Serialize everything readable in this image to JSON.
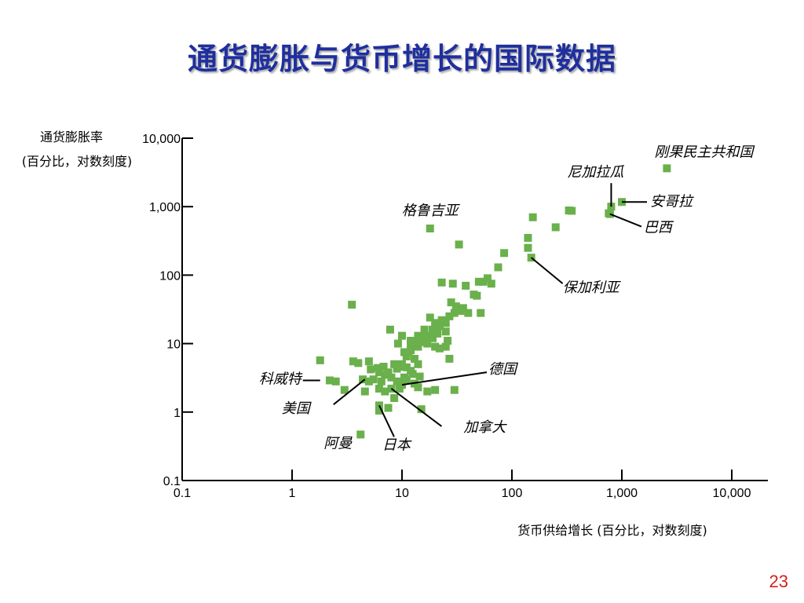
{
  "slide": {
    "title": "通货膨胀与货币增长的国际数据",
    "page_number": "23"
  },
  "chart_data": {
    "type": "scatter",
    "title": "通货膨胀与货币增长的国际数据",
    "xlabel": "货币供给增长 (百分比，对数刻度)",
    "ylabel_line1": "通货膨胀率",
    "ylabel_line2": "(百分比，对数刻度)",
    "x_scale": "log",
    "y_scale": "log",
    "xlim": [
      0.1,
      10000
    ],
    "ylim": [
      0.1,
      10000
    ],
    "x_ticks": [
      {
        "value": 0.1,
        "label": "0.1"
      },
      {
        "value": 1,
        "label": "1"
      },
      {
        "value": 10,
        "label": "10"
      },
      {
        "value": 100,
        "label": "100"
      },
      {
        "value": 1000,
        "label": "1,000"
      },
      {
        "value": 10000,
        "label": "10,000"
      }
    ],
    "y_ticks": [
      {
        "value": 0.1,
        "label": "0.1"
      },
      {
        "value": 1,
        "label": "1"
      },
      {
        "value": 10,
        "label": "10"
      },
      {
        "value": 100,
        "label": "100"
      },
      {
        "value": 1000,
        "label": "1,000"
      },
      {
        "value": 10000,
        "label": "10,000"
      }
    ],
    "grid": false,
    "marker_color": "#6ab04c",
    "points": [
      [
        2570,
        3630
      ],
      [
        1000,
        1170
      ],
      [
        800,
        1000
      ],
      [
        780,
        780
      ],
      [
        760,
        800
      ],
      [
        350,
        870
      ],
      [
        330,
        880
      ],
      [
        250,
        500
      ],
      [
        155,
        700
      ],
      [
        140,
        350
      ],
      [
        140,
        250
      ],
      [
        150,
        180
      ],
      [
        85,
        210
      ],
      [
        75,
        130
      ],
      [
        60,
        90
      ],
      [
        65,
        75
      ],
      [
        55,
        80
      ],
      [
        50,
        80
      ],
      [
        18,
        480
      ],
      [
        33,
        280
      ],
      [
        23,
        78
      ],
      [
        29,
        75
      ],
      [
        45,
        52
      ],
      [
        48,
        50
      ],
      [
        52,
        28
      ],
      [
        34,
        30
      ],
      [
        36,
        33
      ],
      [
        30,
        28
      ],
      [
        27,
        25
      ],
      [
        25,
        20
      ],
      [
        20,
        20
      ],
      [
        18,
        24
      ],
      [
        16,
        16
      ],
      [
        22,
        18
      ],
      [
        25,
        15
      ],
      [
        19,
        12
      ],
      [
        17,
        10
      ],
      [
        14,
        9
      ],
      [
        12,
        10
      ],
      [
        15,
        10.5
      ],
      [
        20,
        9
      ],
      [
        22,
        8.5
      ],
      [
        27,
        6
      ],
      [
        25,
        9
      ],
      [
        12,
        8
      ],
      [
        11,
        6.5
      ],
      [
        13,
        6
      ],
      [
        14,
        5
      ],
      [
        10,
        5
      ],
      [
        11,
        4.5
      ],
      [
        8.5,
        5
      ],
      [
        9,
        4.3
      ],
      [
        7.5,
        3.8
      ],
      [
        8,
        3.2
      ],
      [
        7,
        3.5
      ],
      [
        6.5,
        2.8
      ],
      [
        6,
        4.4
      ],
      [
        5.5,
        3
      ],
      [
        6.2,
        2.2
      ],
      [
        4.6,
        2.0
      ],
      [
        8,
        2.2
      ],
      [
        9.5,
        2.2
      ],
      [
        10,
        2.5
      ],
      [
        11,
        3
      ],
      [
        12,
        4
      ],
      [
        13,
        2.6
      ],
      [
        14,
        2.3
      ],
      [
        17,
        2.0
      ],
      [
        20,
        2.1
      ],
      [
        30,
        2.1
      ],
      [
        15,
        1.1
      ],
      [
        6.2,
        1.25
      ],
      [
        6.2,
        1.05
      ],
      [
        7.5,
        1.15
      ],
      [
        4.2,
        0.47
      ],
      [
        4.0,
        5.2
      ],
      [
        3.6,
        5.5
      ],
      [
        3.5,
        37
      ],
      [
        3.0,
        2.1
      ],
      [
        2.5,
        2.8
      ],
      [
        2.2,
        2.9
      ],
      [
        1.8,
        5.7
      ],
      [
        5.0,
        2.8
      ],
      [
        6.2,
        3.8
      ],
      [
        7.0,
        2.0
      ],
      [
        8.5,
        1.6
      ],
      [
        9.0,
        2.8
      ],
      [
        10.5,
        3.2
      ],
      [
        12.5,
        3.6
      ],
      [
        14.5,
        3.3
      ],
      [
        11.5,
        7.5
      ],
      [
        13.5,
        11
      ],
      [
        16.5,
        13
      ],
      [
        10,
        13
      ],
      [
        9.2,
        10
      ],
      [
        5,
        5.5
      ],
      [
        4.4,
        3.0
      ],
      [
        7.8,
        16
      ],
      [
        5.2,
        4.2
      ],
      [
        6.8,
        4.6
      ],
      [
        9.4,
        4.6
      ],
      [
        10.5,
        7.5
      ],
      [
        12,
        11
      ],
      [
        14,
        13
      ],
      [
        16,
        12
      ],
      [
        18,
        13
      ],
      [
        21,
        14
      ],
      [
        26,
        11
      ],
      [
        19,
        16
      ],
      [
        23,
        22
      ],
      [
        28,
        40
      ],
      [
        38,
        70
      ],
      [
        31,
        35
      ],
      [
        40,
        28
      ]
    ],
    "annotations": [
      {
        "text": "刚果民主共和国",
        "x": 2570,
        "y": 3630,
        "label_pos": "above"
      },
      {
        "text": "尼加拉瓜",
        "x": 800,
        "y": 1000,
        "label_pos": "above-left"
      },
      {
        "text": "安哥拉",
        "x": 1000,
        "y": 1170,
        "label_pos": "right-line"
      },
      {
        "text": "巴西",
        "x": 780,
        "y": 780,
        "label_pos": "right-line"
      },
      {
        "text": "格鲁吉亚",
        "x": 18,
        "y": 480,
        "label_pos": "above"
      },
      {
        "text": "保加利亚",
        "x": 150,
        "y": 180,
        "label_pos": "below-right-line"
      },
      {
        "text": "德国",
        "x": 10,
        "y": 2.5,
        "label_pos": "right-line"
      },
      {
        "text": "科威特",
        "x": 1.8,
        "y": 2.9,
        "label_pos": "left-line"
      },
      {
        "text": "美国",
        "x": 4.6,
        "y": 3.0,
        "label_pos": "below-left-line"
      },
      {
        "text": "阿曼",
        "x": 4.2,
        "y": 0.47,
        "label_pos": "left"
      },
      {
        "text": "日本",
        "x": 6.2,
        "y": 1.25,
        "label_pos": "below-line"
      },
      {
        "text": "加拿大",
        "x": 8,
        "y": 2.2,
        "label_pos": "below-right-line"
      }
    ]
  }
}
